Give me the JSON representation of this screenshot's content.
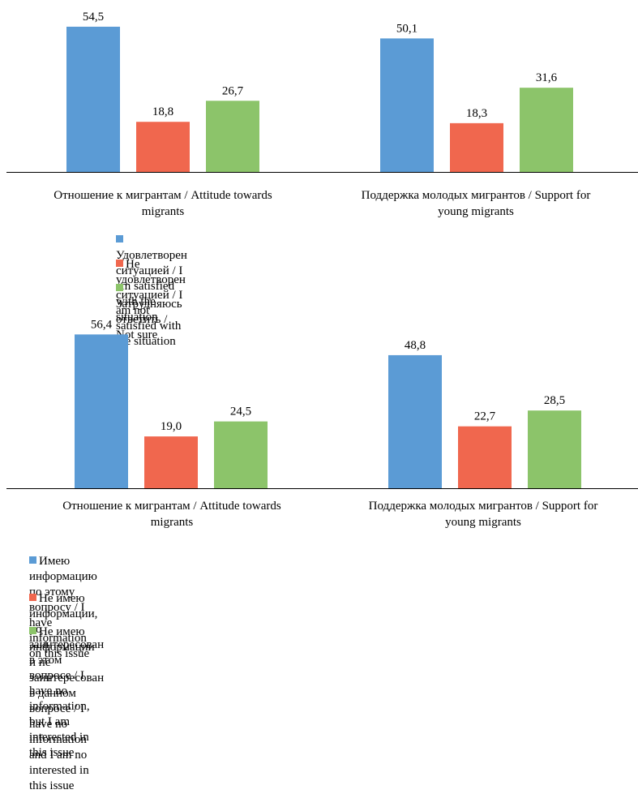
{
  "colors": {
    "blue": "#5b9bd5",
    "red": "#f0674e",
    "green": "#8cc46a",
    "axis": "#000000"
  },
  "chart_data": [
    {
      "type": "bar",
      "title": "",
      "categories": [
        [
          "Отношение к мигрантам / Attitude towards",
          "migrants"
        ],
        [
          "Поддержка молодых мигрантов / Support for",
          "young migrants"
        ]
      ],
      "series": [
        {
          "name": "Удовлетворен ситуацией / I am satisfied with the situation",
          "color": "#5b9bd5",
          "values": [
            54.5,
            50.1
          ],
          "labels": [
            "54,5",
            "50,1"
          ]
        },
        {
          "name": "Не удовлетворен ситуацией / I am not satisfied with the situation",
          "color": "#f0674e",
          "values": [
            18.8,
            18.3
          ],
          "labels": [
            "18,8",
            "18,3"
          ]
        },
        {
          "name": "Затрудняюсь ответить / Not sure",
          "color": "#8cc46a",
          "values": [
            26.7,
            31.6
          ],
          "labels": [
            "26,7",
            "31,6"
          ]
        }
      ],
      "ylim": [
        0,
        56
      ],
      "grid": false,
      "legend": "bottom"
    },
    {
      "type": "bar",
      "title": "",
      "categories": [
        [
          "Отношение к мигрантам / Attitude towards",
          "migrants"
        ],
        [
          "Поддержка молодых мигрантов / Support for",
          "young migrants"
        ]
      ],
      "series": [
        {
          "name": [
            "Имею информацию по этому вопросу / I have information on this issue"
          ],
          "color": "#5b9bd5",
          "values": [
            56.4,
            48.8
          ],
          "labels": [
            "56,4",
            "48,8"
          ]
        },
        {
          "name": [
            "Не имею информации, но заинтересован в этом вопросе / I have no information, but I am",
            "interested in this issue"
          ],
          "color": "#f0674e",
          "values": [
            19.0,
            22.7
          ],
          "labels": [
            "19,0",
            "22,7"
          ]
        },
        {
          "name": [
            "Не имею информации и не заинтересован в данном вопросе / I have no information and I am no",
            "interested in this issue"
          ],
          "color": "#8cc46a",
          "values": [
            24.5,
            28.5
          ],
          "labels": [
            "24,5",
            "28,5"
          ]
        }
      ],
      "ylim": [
        0,
        58
      ],
      "grid": false,
      "legend": "bottom"
    }
  ]
}
